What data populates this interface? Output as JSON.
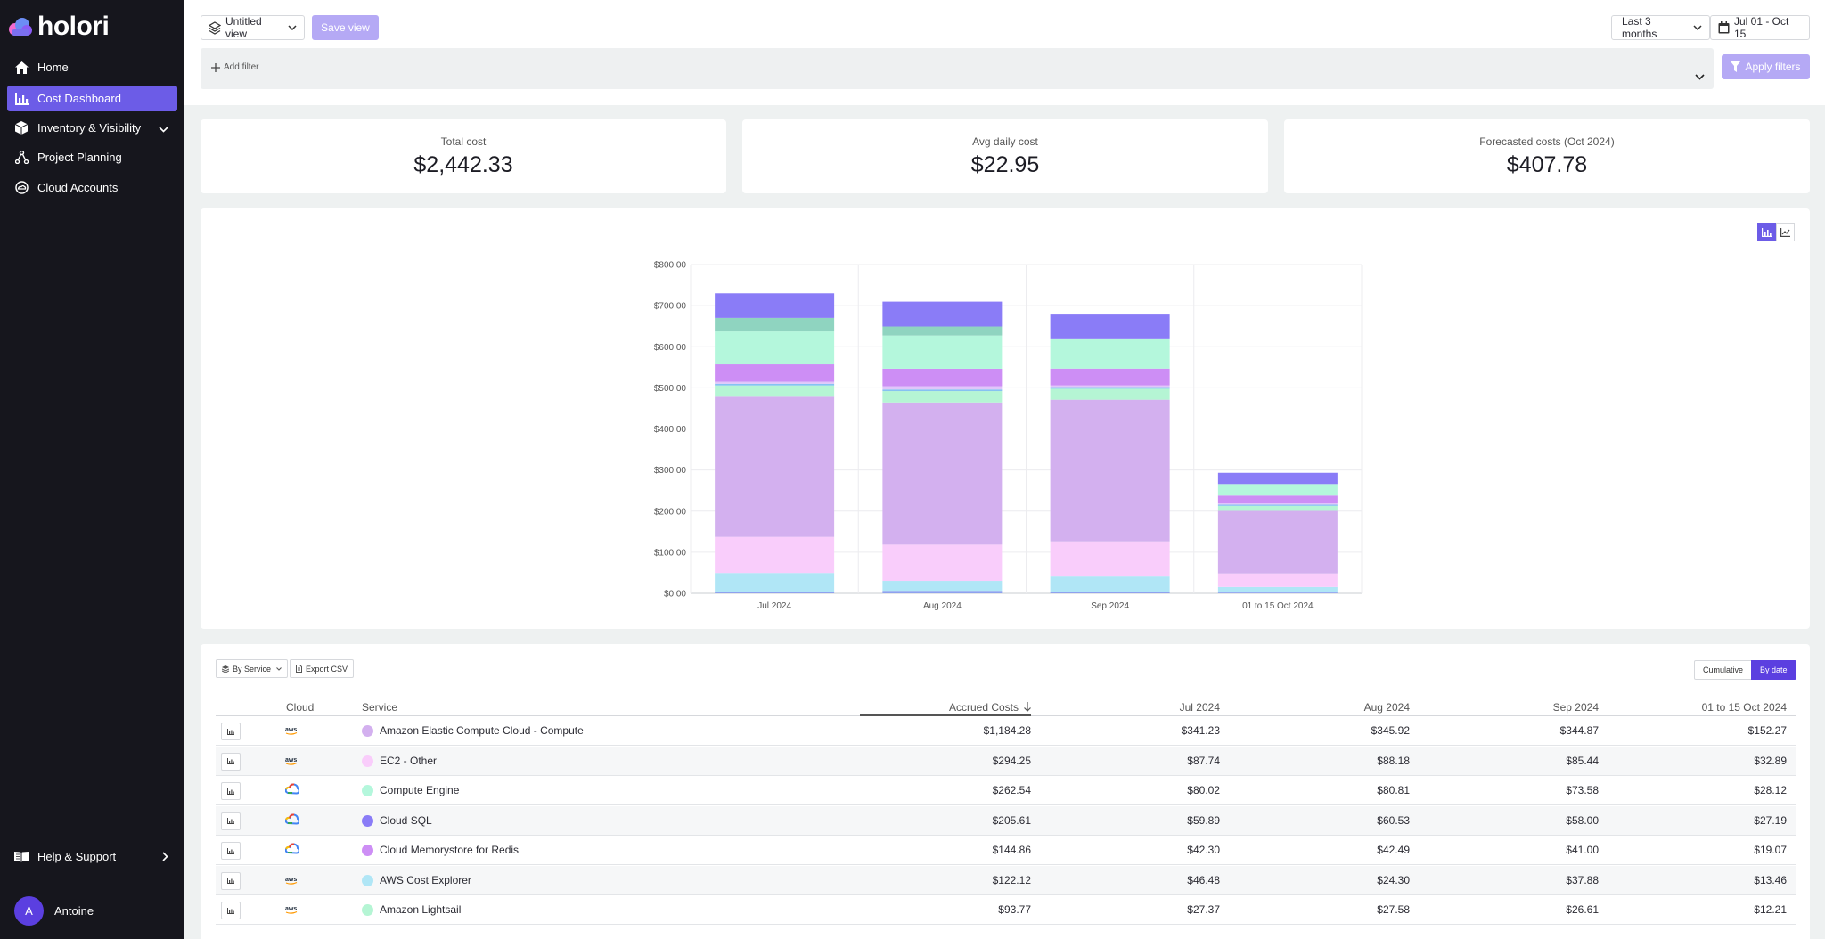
{
  "app": {
    "name": "holori"
  },
  "sidebar": {
    "items": [
      {
        "label": "Home",
        "icon": "home-icon",
        "active": false
      },
      {
        "label": "Cost Dashboard",
        "icon": "bar-chart-icon",
        "active": true
      },
      {
        "label": "Inventory & Visibility",
        "icon": "cube-icon",
        "active": false,
        "expandable": true
      },
      {
        "label": "Project Planning",
        "icon": "network-icon",
        "active": false
      },
      {
        "label": "Cloud Accounts",
        "icon": "cloud-circle-icon",
        "active": false
      }
    ],
    "help": {
      "label": "Help & Support",
      "icon": "book-icon"
    },
    "user": {
      "initial": "A",
      "name": "Antoine"
    }
  },
  "toolbar": {
    "view_label": "Untitled view",
    "save_label": "Save view",
    "range_label": "Last 3 months",
    "date_label": "Jul 01 - Oct 15",
    "add_filter_label": "Add filter",
    "apply_label": "Apply filters"
  },
  "kpis": [
    {
      "label": "Total cost",
      "value": "$2,442.33"
    },
    {
      "label": "Avg daily cost",
      "value": "$22.95"
    },
    {
      "label": "Forecasted costs (Oct 2024)",
      "value": "$407.78"
    }
  ],
  "colors": {
    "accent": "#6c5ce7",
    "sidebar_bg": "#16161d"
  },
  "chart_data": {
    "type": "bar",
    "stacked": true,
    "categories": [
      "Jul 2024",
      "Aug 2024",
      "Sep 2024",
      "01 to 15 Oct 2024"
    ],
    "y_ticks": [
      "$0.00",
      "$100.00",
      "$200.00",
      "$300.00",
      "$400.00",
      "$500.00",
      "$600.00",
      "$700.00",
      "$800.00"
    ],
    "ylim": [
      0,
      800
    ],
    "grid": true,
    "series": [
      {
        "color": "#8ea1ee",
        "values": [
          3,
          6,
          3,
          2
        ]
      },
      {
        "color": "#b0e6f6",
        "values": [
          46.48,
          24.3,
          37.88,
          13.46
        ]
      },
      {
        "color": "#f9cdfb",
        "values": [
          87.74,
          88.18,
          85.44,
          32.89
        ]
      },
      {
        "color": "#d3b0ef",
        "values": [
          341.23,
          345.92,
          344.87,
          152.27
        ]
      },
      {
        "color": "#b5f5d4",
        "values": [
          27.37,
          27.58,
          26.61,
          12.21
        ]
      },
      {
        "color": "#86c2f2",
        "values": [
          4,
          4,
          4,
          3
        ]
      },
      {
        "color": "#e0c6fa",
        "values": [
          5,
          8,
          4,
          3
        ]
      },
      {
        "color": "#cd8ef5",
        "values": [
          42.3,
          42.49,
          41.0,
          19.07
        ]
      },
      {
        "color": "#b4f7dc",
        "values": [
          80.02,
          80.81,
          73.58,
          28.12
        ]
      },
      {
        "color": "#8fd4c0",
        "values": [
          33,
          22,
          0,
          0
        ]
      },
      {
        "color": "#8a7cf7",
        "values": [
          59.89,
          60.53,
          58.0,
          27.19
        ]
      }
    ],
    "toggle_icons": [
      "bar-chart-icon",
      "line-chart-icon"
    ]
  },
  "table": {
    "group_label": "By Service",
    "export_label": "Export CSV",
    "mode_labels": [
      "Cumulative",
      "By date"
    ],
    "active_mode": "By date",
    "columns": [
      "Cloud",
      "Service",
      "Accrued Costs",
      "Jul 2024",
      "Aug 2024",
      "Sep 2024",
      "01 to 15 Oct 2024"
    ],
    "sort_column": "Accrued Costs",
    "sort_dir": "desc",
    "rows": [
      {
        "cloud": "aws",
        "service": "Amazon Elastic Compute Cloud - Compute",
        "color": "#d3b0ef",
        "accrued": "$1,184.28",
        "jul": "$341.23",
        "aug": "$345.92",
        "sep": "$344.87",
        "oct": "$152.27"
      },
      {
        "cloud": "aws",
        "service": "EC2 - Other",
        "color": "#f9cdfb",
        "accrued": "$294.25",
        "jul": "$87.74",
        "aug": "$88.18",
        "sep": "$85.44",
        "oct": "$32.89"
      },
      {
        "cloud": "gcp",
        "service": "Compute Engine",
        "color": "#b4f7dc",
        "accrued": "$262.54",
        "jul": "$80.02",
        "aug": "$80.81",
        "sep": "$73.58",
        "oct": "$28.12"
      },
      {
        "cloud": "gcp",
        "service": "Cloud SQL",
        "color": "#8a7cf7",
        "accrued": "$205.61",
        "jul": "$59.89",
        "aug": "$60.53",
        "sep": "$58.00",
        "oct": "$27.19"
      },
      {
        "cloud": "gcp",
        "service": "Cloud Memorystore for Redis",
        "color": "#cd8ef5",
        "accrued": "$144.86",
        "jul": "$42.30",
        "aug": "$42.49",
        "sep": "$41.00",
        "oct": "$19.07"
      },
      {
        "cloud": "aws",
        "service": "AWS Cost Explorer",
        "color": "#b0e6f6",
        "accrued": "$122.12",
        "jul": "$46.48",
        "aug": "$24.30",
        "sep": "$37.88",
        "oct": "$13.46"
      },
      {
        "cloud": "aws",
        "service": "Amazon Lightsail",
        "color": "#b5f5d4",
        "accrued": "$93.77",
        "jul": "$27.37",
        "aug": "$27.58",
        "sep": "$26.61",
        "oct": "$12.21"
      }
    ]
  }
}
